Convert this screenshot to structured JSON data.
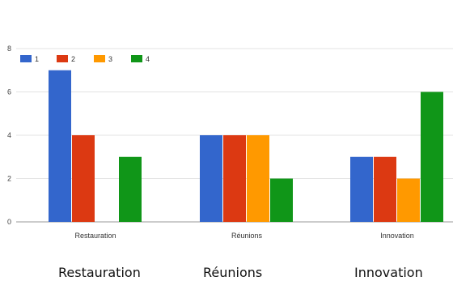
{
  "chart_data": {
    "type": "bar",
    "categories": [
      "Restauration",
      "Réunions",
      "Innovation"
    ],
    "series": [
      {
        "name": "1",
        "values": [
          7,
          4,
          3
        ],
        "color": "#3366cc"
      },
      {
        "name": "2",
        "values": [
          4,
          4,
          3
        ],
        "color": "#dc3912"
      },
      {
        "name": "3",
        "values": [
          0,
          4,
          2
        ],
        "color": "#ff9900"
      },
      {
        "name": "4",
        "values": [
          3,
          2,
          6
        ],
        "color": "#109618"
      }
    ],
    "yticks": [
      "0",
      "2",
      "4",
      "6",
      "8"
    ],
    "ylim": [
      0,
      8
    ],
    "grid": true,
    "legend": "top-left"
  },
  "captions": [
    "Restauration",
    "Réunions",
    "Innovation"
  ]
}
